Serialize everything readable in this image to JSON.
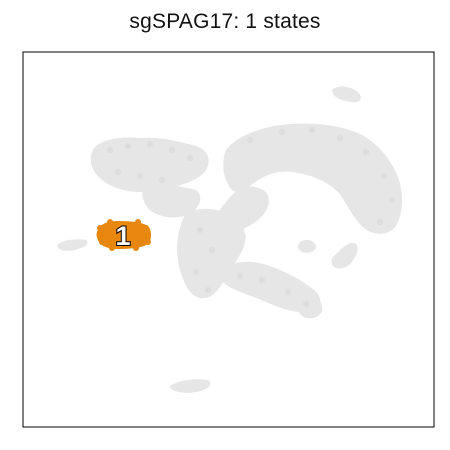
{
  "chart_data": {
    "type": "scatter",
    "title": "sgSPAG17: 1 states",
    "background_color": "#e6e6e6",
    "highlight_color": "#e8870e",
    "frame_color": "#000000",
    "grid": false,
    "states": [
      {
        "label": "1"
      }
    ]
  }
}
